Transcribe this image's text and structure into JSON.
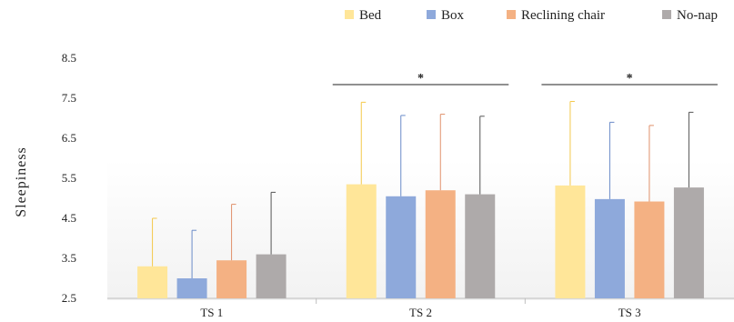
{
  "chart_data": {
    "type": "bar",
    "ylabel": "Sleepiness",
    "xlabel": "",
    "ylim": [
      2.5,
      8.5
    ],
    "yticks": [
      2.5,
      3.5,
      4.5,
      5.5,
      6.5,
      7.5,
      8.5
    ],
    "categories": [
      "TS 1",
      "TS 2",
      "TS 3"
    ],
    "legend_position": "top-right",
    "series": [
      {
        "name": "Bed",
        "color": "#FFE699",
        "errcolor": "#F4C84A",
        "values": [
          3.3,
          5.35,
          5.32
        ],
        "errors": [
          1.2,
          2.05,
          2.1
        ]
      },
      {
        "name": "Box",
        "color": "#8EA9DB",
        "errcolor": "#6A8BC8",
        "values": [
          3.0,
          5.05,
          4.98
        ],
        "errors": [
          1.2,
          2.02,
          1.92
        ]
      },
      {
        "name": "Reclining chair",
        "color": "#F4B183",
        "errcolor": "#E0906A",
        "values": [
          3.45,
          5.2,
          4.92
        ],
        "errors": [
          1.4,
          1.9,
          1.9
        ]
      },
      {
        "name": "No-nap",
        "color": "#AEAAAA",
        "errcolor": "#555555",
        "values": [
          3.6,
          5.1,
          5.27
        ],
        "errors": [
          1.55,
          1.95,
          1.88
        ]
      }
    ],
    "annotations": [
      {
        "category": "TS 2",
        "text": "*"
      },
      {
        "category": "TS 3",
        "text": "*"
      }
    ]
  }
}
